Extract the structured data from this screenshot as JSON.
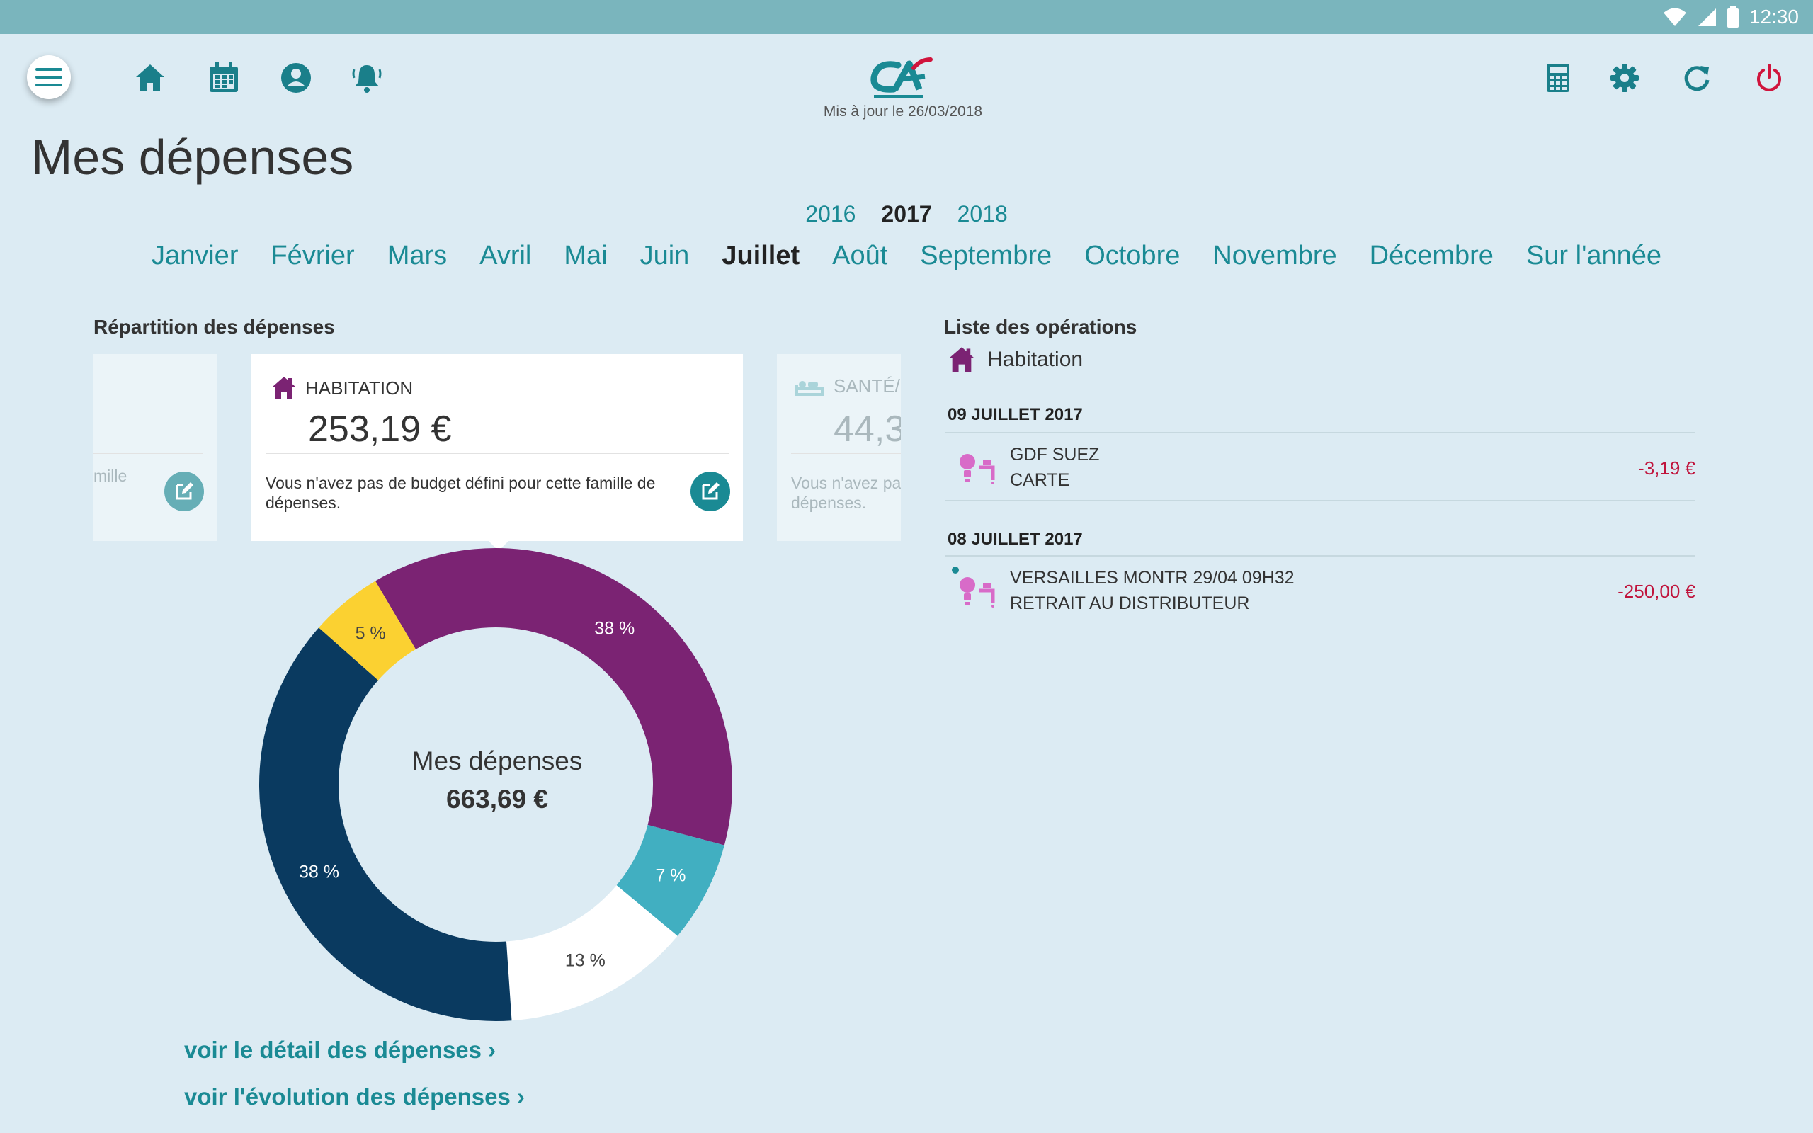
{
  "status_bar": {
    "time": "12:30"
  },
  "header": {
    "updated_label": "Mis à jour le 26/03/2018",
    "logo_icon": "credit-agricole-logo"
  },
  "toolbar_left": [
    "menu-icon",
    "home-icon",
    "calendar-icon",
    "profile-icon",
    "bell-icon"
  ],
  "toolbar_right": [
    "calculator-icon",
    "gear-icon",
    "refresh-icon",
    "power-icon"
  ],
  "page": {
    "title": "Mes dépenses"
  },
  "years": [
    {
      "label": "2016",
      "active": false
    },
    {
      "label": "2017",
      "active": true
    },
    {
      "label": "2018",
      "active": false
    }
  ],
  "months": [
    {
      "label": "Janvier",
      "active": false
    },
    {
      "label": "Février",
      "active": false
    },
    {
      "label": "Mars",
      "active": false
    },
    {
      "label": "Avril",
      "active": false
    },
    {
      "label": "Mai",
      "active": false
    },
    {
      "label": "Juin",
      "active": false
    },
    {
      "label": "Juillet",
      "active": true
    },
    {
      "label": "Août",
      "active": false
    },
    {
      "label": "Septembre",
      "active": false
    },
    {
      "label": "Octobre",
      "active": false
    },
    {
      "label": "Novembre",
      "active": false
    },
    {
      "label": "Décembre",
      "active": false
    },
    {
      "label": "Sur l'année",
      "active": false
    }
  ],
  "repartition": {
    "title": "Répartition des dépenses",
    "left_card": {
      "msg_fragment": "mille"
    },
    "main_card": {
      "category": "HABITATION",
      "amount": "253,19 €",
      "message": "Vous n'avez pas de budget défini pour cette famille de dépenses."
    },
    "right_card": {
      "category": "SANTÉ/",
      "amount": "44,3",
      "message": "Vous n'avez pas de budget défini pour cette famille de dépenses."
    }
  },
  "chart_data": {
    "type": "pie",
    "center_label": "Mes dépenses",
    "center_value": "663,69 €",
    "slices": [
      {
        "label": "38 %",
        "value": 38,
        "color": "#7b2373"
      },
      {
        "label": "7 %",
        "value": 7,
        "color": "#41afc1"
      },
      {
        "label": "13 %",
        "value": 13,
        "color": "#ffffff"
      },
      {
        "label": "38 %",
        "value": 38,
        "color": "#0a3a60"
      },
      {
        "label": "5 %",
        "value": 5,
        "color": "#fbd131"
      }
    ]
  },
  "links": {
    "detail": "voir le détail des dépenses ›",
    "evolution": "voir l'évolution des dépenses ›"
  },
  "operations": {
    "title": "Liste des opérations",
    "filter_label": "Habitation",
    "groups": [
      {
        "date": "09 JUILLET 2017",
        "items": [
          {
            "line1": "GDF SUEZ",
            "line2": "CARTE",
            "amount": "-3,19 €",
            "unread": false
          }
        ]
      },
      {
        "date": "08 JUILLET 2017",
        "items": [
          {
            "line1": "VERSAILLES MONTR 29/04 09H32",
            "line2": "RETRAIT AU DISTRIBUTEUR",
            "amount": "-250,00 €",
            "unread": true
          }
        ]
      }
    ]
  },
  "colors": {
    "accent": "#1a8a94",
    "habitation": "#7b2373",
    "negative": "#c0143c",
    "power": "#d0143c"
  }
}
